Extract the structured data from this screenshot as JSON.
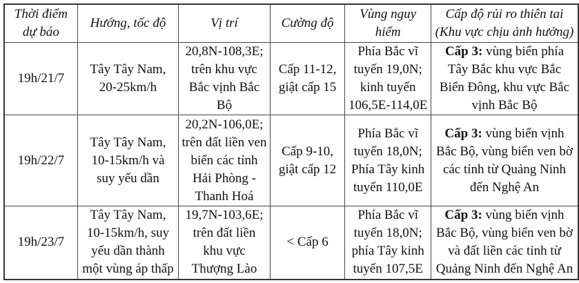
{
  "headers": [
    "Thời điểm\ndự báo",
    "Hướng, tốc độ",
    "Vị trí",
    "Cường độ",
    "Vùng nguy\nhiểm",
    "Cấp độ rủi ro thiên tai\n(Khu vực chịu ảnh hưởng)"
  ],
  "rows": [
    {
      "time": "19h/21/7",
      "direction": "Tây Tây Nam,\n20-25km/h",
      "position": "20,8N-108,3E;\ntrên khu vực\nBắc vịnh Bắc\nBộ",
      "intensity": "Cấp 11-12,\ngiật cấp 15",
      "danger_zone": "Phía Bắc vĩ\ntuyến 19,0N;\nkinh tuyến\n106,5E-114,0E",
      "risk_level": "Cấp 3:",
      "risk_area": " vùng biển phía\nTây Bắc khu vực Bắc\nBiển Đông, khu vực Bắc\nvịnh Bắc Bộ"
    },
    {
      "time": "19h/22/7",
      "direction": "Tây Tây Nam,\n10-15km/h và\nsuy yếu dần",
      "position": "20,2N-106,0E;\ntrên đất liền ven\nbiển các tỉnh\nHải Phòng -\nThanh Hoá",
      "intensity": "Cấp 9-10,\ngiật cấp 12",
      "danger_zone": "Phía Bắc vĩ\ntuyến 18,0N;\nPhía Tây kinh\ntuyến 110,0E",
      "risk_level": "Cấp 3:",
      "risk_area": " vùng biển vịnh\nBắc Bộ, vùng biển ven bờ\ncác tỉnh từ Quảng Ninh\nđến Nghệ An"
    },
    {
      "time": "19h/23/7",
      "direction": "Tây Tây Nam,\n10-15km/h, suy\nyếu dần thành\nmột vùng áp thấp",
      "position": "19,7N-103,6E;\ntrên đất liền\nkhu vực\nThượng Lào",
      "intensity": "< Cấp 6",
      "danger_zone": "Phía Bắc vĩ\ntuyến 18,0N;\nphía Tây kinh\ntuyến 107,5E",
      "risk_level": "Cấp 3:",
      "risk_area": " vùng biển vịnh\nBắc Bộ, vùng biển ven bờ\nvà đất liền các tỉnh từ\nQuảng Ninh đến Nghệ An"
    }
  ]
}
